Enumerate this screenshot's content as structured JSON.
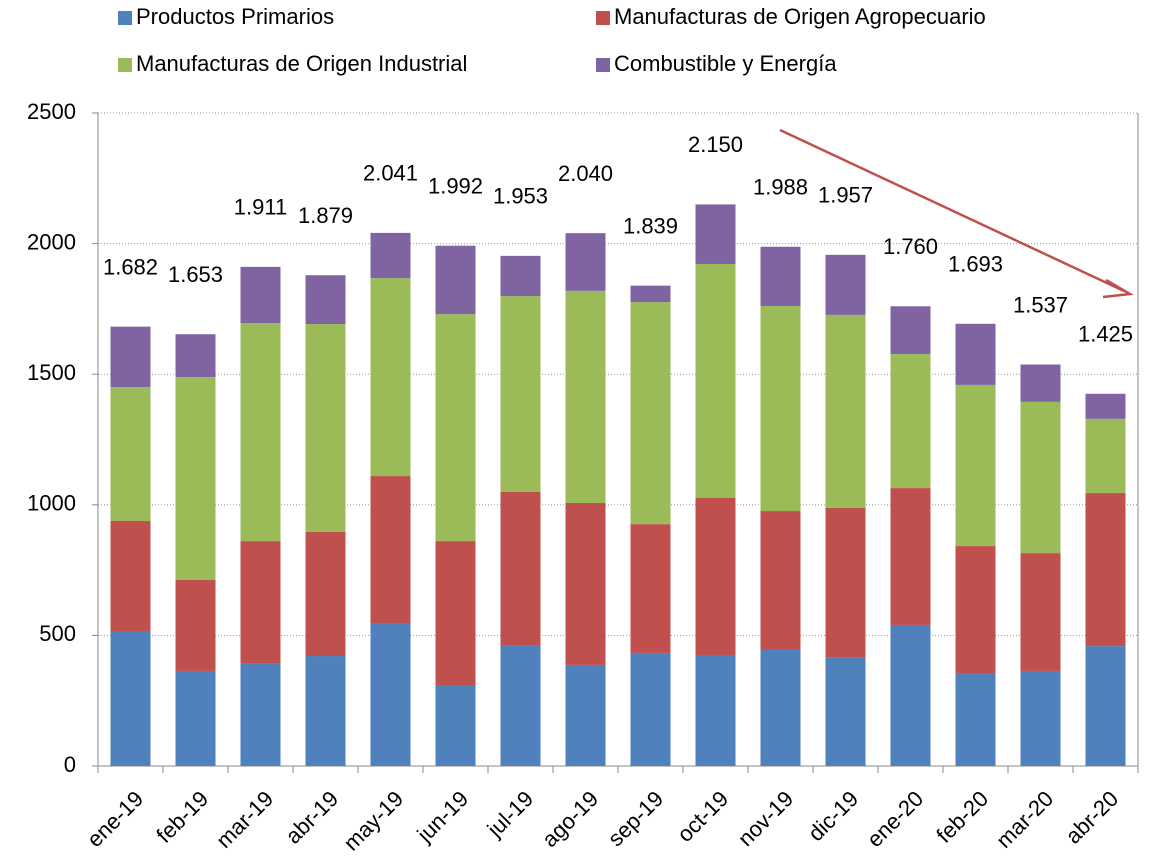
{
  "chart_data": {
    "type": "stacked_bar",
    "categories": [
      "ene-19",
      "feb-19",
      "mar-19",
      "abr-19",
      "may-19",
      "jun-19",
      "jul-19",
      "ago-19",
      "sep-19",
      "oct-19",
      "nov-19",
      "dic-19",
      "ene-20",
      "feb-20",
      "mar-20",
      "abr-20"
    ],
    "series": [
      {
        "name": "Productos Primarios",
        "color": "#4f81bd",
        "values": [
          517,
          364,
          394,
          421,
          544,
          310,
          463,
          387,
          433,
          425,
          448,
          417,
          540,
          356,
          364,
          459
        ]
      },
      {
        "name": "Manufacturas de Origen Agropecuario",
        "color": "#c0504d",
        "values": [
          421,
          348,
          467,
          475,
          566,
          551,
          586,
          620,
          493,
          601,
          528,
          571,
          524,
          486,
          451,
          586
        ]
      },
      {
        "name": "Manufacturas de Origen Industrial",
        "color": "#9bbb59",
        "values": [
          513,
          777,
          835,
          796,
          758,
          869,
          750,
          812,
          850,
          896,
          785,
          739,
          513,
          617,
          579,
          284
        ]
      },
      {
        "name": "Combustible y Energía",
        "color": "#8064a2",
        "values": [
          231,
          164,
          215,
          187,
          173,
          262,
          154,
          221,
          63,
          228,
          227,
          230,
          183,
          234,
          143,
          96
        ]
      }
    ],
    "totals": {
      "values": [
        1682,
        1653,
        1911,
        1879,
        2041,
        1992,
        1953,
        2040,
        1839,
        2150,
        1988,
        1957,
        1760,
        1693,
        1537,
        1425
      ],
      "value_labels": [
        "1.682",
        "1.653",
        "1.911",
        "1.879",
        "2.041",
        "1.992",
        "1.953",
        "2.040",
        "1.839",
        "2.150",
        "1.988",
        "1.957",
        "1.760",
        "1.693",
        "1.537",
        "1.425"
      ]
    },
    "ylim": [
      0,
      2500
    ],
    "yticks": [
      0,
      500,
      1000,
      1500,
      2000,
      2500
    ],
    "grid": true
  }
}
